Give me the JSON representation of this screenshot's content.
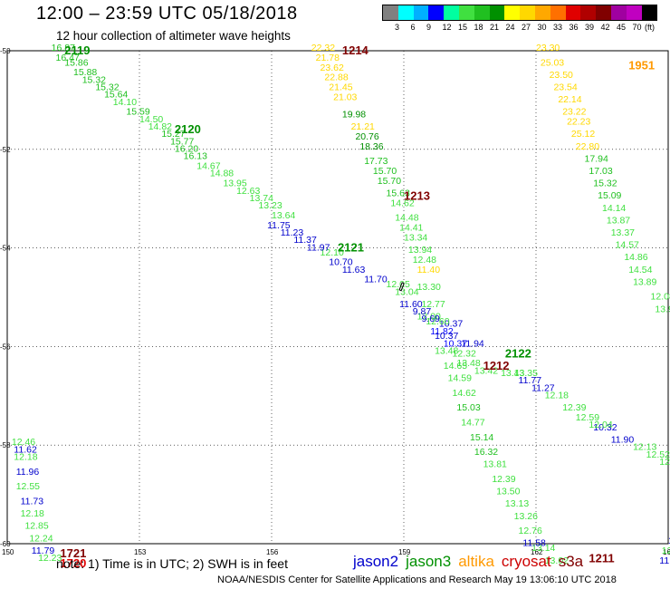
{
  "header": {
    "title": "12:00 – 23:59 UTC 05/18/2018",
    "subtitle": "12 hour collection of altimeter wave heights"
  },
  "legend": {
    "colors": [
      "#808080",
      "#00ffff",
      "#00b0ff",
      "#0000ff",
      "#00ffa0",
      "#40e040",
      "#20c020",
      "#009000",
      "#ffff00",
      "#ffd800",
      "#ffa800",
      "#ff7000",
      "#e00000",
      "#b00000",
      "#800000",
      "#a000a0",
      "#c000c0",
      "#000000"
    ],
    "ticks": [
      "3",
      "6",
      "9",
      "12",
      "15",
      "18",
      "21",
      "24",
      "27",
      "30",
      "33",
      "36",
      "39",
      "42",
      "45",
      "70",
      "(ft)"
    ]
  },
  "axes": {
    "lon_ticks": [
      "150",
      "153",
      "156",
      "159",
      "162",
      "165"
    ],
    "lat_ticks": [
      "-50",
      "-52",
      "-54",
      "-56",
      "-58",
      "-60"
    ]
  },
  "tracks": [
    {
      "sat": "jason3",
      "label": "2119",
      "label_lat": -50.0,
      "label_lon": 151.3,
      "points": [
        [
          151.0,
          -50.0,
          "16.87"
        ],
        [
          151.1,
          -50.2,
          "16.47"
        ],
        [
          151.3,
          -50.3,
          "15.86"
        ],
        [
          151.5,
          -50.5,
          "15.88"
        ],
        [
          151.7,
          -50.65,
          "15.32"
        ],
        [
          152.0,
          -50.8,
          "15.32"
        ],
        [
          152.2,
          -50.95,
          "15.64"
        ],
        [
          152.4,
          -51.1,
          "14.10"
        ],
        [
          152.7,
          -51.3,
          "15.59"
        ],
        [
          153.0,
          -51.45,
          "14.50"
        ],
        [
          153.2,
          -51.6,
          "14.82"
        ],
        [
          153.5,
          -51.75,
          "15.27"
        ],
        [
          153.7,
          -51.9,
          "15.77"
        ],
        [
          153.8,
          -52.05,
          "16.20"
        ],
        [
          154.0,
          -52.2,
          "16.13"
        ],
        [
          154.3,
          -52.4,
          "14.67"
        ],
        [
          154.6,
          -52.55,
          "14.88"
        ],
        [
          154.9,
          -52.75,
          "13.95"
        ],
        [
          155.2,
          -52.9,
          "12.63"
        ],
        [
          155.5,
          -53.05,
          "13.74"
        ],
        [
          155.7,
          -53.2,
          "13.23"
        ],
        [
          156.0,
          -53.4,
          "13.64"
        ]
      ]
    },
    {
      "sat": "jason3",
      "label": "2120",
      "label_lat": -51.6,
      "label_lon": 153.8,
      "points": []
    },
    {
      "sat": "jason3",
      "label": "2121",
      "label_lat": -54.0,
      "label_lon": 157.5,
      "points": [
        [
          157.1,
          -54.15,
          "12.10"
        ],
        [
          158.6,
          -54.8,
          "12.05"
        ],
        [
          158.8,
          -54.95,
          "13.04"
        ],
        [
          159.3,
          -55.45,
          "12.00"
        ],
        [
          159.6,
          -55.75,
          "11.82"
        ],
        [
          159.9,
          -56.0,
          "10.37"
        ],
        [
          160.1,
          -56.2,
          "12.32"
        ]
      ]
    },
    {
      "sat": "jason2",
      "label": "",
      "label_lat": 0,
      "label_lon": 0,
      "points": [
        [
          155.9,
          -53.6,
          "11.75"
        ],
        [
          156.2,
          -53.75,
          "11.23"
        ],
        [
          156.5,
          -53.9,
          "11.37"
        ],
        [
          156.8,
          -54.05,
          "11.97"
        ],
        [
          157.3,
          -54.35,
          "10.70"
        ],
        [
          157.6,
          -54.5,
          "11.63"
        ],
        [
          158.1,
          -54.7,
          "11.70"
        ],
        [
          158.9,
          -55.2,
          "11.60"
        ],
        [
          159.2,
          -55.35,
          "9.87"
        ],
        [
          159.4,
          -55.5,
          "9.69"
        ],
        [
          159.8,
          -55.6,
          "10.37"
        ],
        [
          159.7,
          -55.85,
          "10.37"
        ],
        [
          160.3,
          -56.0,
          "11.94"
        ],
        [
          161.6,
          -56.75,
          "11.77"
        ],
        [
          161.9,
          -56.9,
          "11.27"
        ],
        [
          163.3,
          -57.7,
          "10.32"
        ],
        [
          163.7,
          -57.95,
          "11.90"
        ]
      ]
    },
    {
      "sat": "jason3",
      "label": "2122",
      "label_lat": -56.15,
      "label_lon": 161.3,
      "points": [
        [
          160.2,
          -56.4,
          "13.48"
        ],
        [
          160.6,
          -56.55,
          "13.42"
        ],
        [
          161.2,
          -56.6,
          "13.43"
        ],
        [
          161.5,
          -56.6,
          "13.35"
        ],
        [
          162.2,
          -57.05,
          "12.18"
        ],
        [
          162.6,
          -57.3,
          "12.39"
        ],
        [
          162.9,
          -57.5,
          "12.59"
        ],
        [
          163.2,
          -57.65,
          "12.04"
        ],
        [
          164.2,
          -58.1,
          "12.13"
        ],
        [
          164.5,
          -58.25,
          "12.52"
        ],
        [
          164.8,
          -58.4,
          "12.08"
        ],
        [
          165.1,
          -58.6,
          "12.01"
        ]
      ]
    },
    {
      "sat": "jason3",
      "label": "",
      "label_lat": 0,
      "label_lon": 0,
      "points": [
        [
          157.9,
          -51.8,
          "20.76"
        ],
        [
          158.0,
          -52.0,
          "18.36"
        ],
        [
          158.1,
          -52.3,
          "17.73"
        ],
        [
          158.3,
          -52.5,
          "15.70"
        ],
        [
          158.4,
          -52.7,
          "15.70"
        ],
        [
          158.6,
          -52.95,
          "15.63"
        ],
        [
          158.7,
          -53.15,
          "14.62"
        ],
        [
          158.8,
          -53.45,
          "14.48"
        ],
        [
          158.9,
          -53.65,
          "14.41"
        ],
        [
          159.0,
          -53.85,
          "13.34"
        ],
        [
          159.1,
          -54.1,
          "13.94"
        ],
        [
          159.2,
          -54.3,
          "12.48"
        ],
        [
          159.3,
          -54.85,
          "13.30"
        ],
        [
          159.4,
          -55.2,
          "12.77"
        ],
        [
          159.5,
          -55.55,
          "12.60"
        ],
        [
          159.7,
          -56.15,
          "13.48"
        ],
        [
          159.9,
          -56.45,
          "14.65"
        ],
        [
          160.0,
          -56.7,
          "14.59"
        ],
        [
          160.1,
          -57.0,
          "14.62"
        ],
        [
          160.2,
          -57.3,
          "15.03"
        ],
        [
          160.3,
          -57.6,
          "14.77"
        ],
        [
          160.5,
          -57.9,
          "15.14"
        ],
        [
          160.6,
          -58.2,
          "16.32"
        ],
        [
          160.8,
          -58.45,
          "13.81"
        ],
        [
          161.0,
          -58.75,
          "12.39"
        ],
        [
          161.1,
          -59.0,
          "13.50"
        ],
        [
          161.3,
          -59.25,
          "13.13"
        ],
        [
          161.5,
          -59.5,
          "13.26"
        ],
        [
          161.6,
          -59.8,
          "12.76"
        ],
        [
          161.9,
          -60.15,
          "13.14"
        ],
        [
          162.2,
          -60.4,
          "13.02"
        ]
      ]
    },
    {
      "sat": "jason2",
      "label": "",
      "label_lat": 0,
      "label_lon": 0,
      "points": [
        [
          161.7,
          -60.05,
          "11.58"
        ]
      ]
    },
    {
      "sat": "altika",
      "label": "",
      "label_lat": 0,
      "label_lon": 0,
      "points": [
        [
          156.9,
          -50.0,
          "22.32"
        ],
        [
          157.0,
          -50.2,
          "21.78"
        ],
        [
          157.1,
          -50.4,
          "23.62"
        ],
        [
          157.2,
          -50.6,
          "22.88"
        ],
        [
          157.3,
          -50.8,
          "21.45"
        ],
        [
          157.4,
          -51.0,
          "21.03"
        ],
        [
          157.8,
          -51.6,
          "21.21"
        ],
        [
          159.3,
          -54.5,
          "11.40"
        ]
      ]
    },
    {
      "sat": "jason3",
      "label": "",
      "label_lat": 0,
      "label_lon": 0,
      "points": [
        [
          157.6,
          -51.35,
          "19.98"
        ]
      ]
    },
    {
      "sat": "cryosat",
      "label": "1214",
      "label_lat": -50.0,
      "label_lon": 157.6,
      "points": []
    },
    {
      "sat": "cryosat",
      "label": "1213",
      "label_lat": -52.95,
      "label_lon": 159.0,
      "points": []
    },
    {
      "sat": "cryosat",
      "label": "1212",
      "label_lat": -56.4,
      "label_lon": 160.8,
      "points": []
    },
    {
      "sat": "cryosat",
      "label": "1211",
      "label_lat": -60.3,
      "label_lon": 163.2,
      "points": []
    },
    {
      "sat": "altika",
      "label": "1951",
      "label_lat": -50.3,
      "label_lon": 164.1,
      "points": [
        [
          162.0,
          -50.0,
          "23.30"
        ],
        [
          162.1,
          -50.3,
          "25.03"
        ],
        [
          162.3,
          -50.55,
          "23.50"
        ],
        [
          162.4,
          -50.8,
          "23.54"
        ],
        [
          162.5,
          -51.05,
          "22.14"
        ],
        [
          162.6,
          -51.3,
          "23.22"
        ],
        [
          162.7,
          -51.5,
          "22.23"
        ],
        [
          162.8,
          -51.75,
          "25.12"
        ],
        [
          162.9,
          -52.0,
          "22.80"
        ]
      ]
    },
    {
      "sat": "jason3",
      "label": "",
      "label_lat": 0,
      "label_lon": 0,
      "points": [
        [
          163.1,
          -52.25,
          "17.94"
        ],
        [
          163.2,
          -52.5,
          "17.03"
        ],
        [
          163.3,
          -52.75,
          "15.32"
        ],
        [
          163.4,
          -53.0,
          "15.09"
        ],
        [
          163.5,
          -53.25,
          "14.14"
        ],
        [
          163.6,
          -53.5,
          "13.87"
        ],
        [
          163.7,
          -53.75,
          "13.37"
        ],
        [
          163.8,
          -54.0,
          "14.57"
        ],
        [
          164.0,
          -54.25,
          "14.86"
        ],
        [
          164.1,
          -54.5,
          "14.54"
        ],
        [
          164.2,
          -54.75,
          "13.89"
        ],
        [
          164.6,
          -55.05,
          "12.08"
        ],
        [
          164.7,
          -55.3,
          "13.9"
        ]
      ]
    },
    {
      "sat": "jason3",
      "label": "",
      "label_lat": 0,
      "label_lon": 0,
      "points": [
        [
          150.1,
          -58.0,
          "12.46"
        ],
        [
          150.15,
          -58.3,
          "12.18"
        ],
        [
          150.2,
          -58.9,
          "12.55"
        ],
        [
          150.3,
          -59.45,
          "12.18"
        ],
        [
          150.4,
          -59.7,
          "12.85"
        ],
        [
          150.5,
          -59.95,
          "12.24"
        ],
        [
          150.7,
          -60.35,
          "12.23"
        ]
      ]
    },
    {
      "sat": "jason2",
      "label": "",
      "label_lat": 0,
      "label_lon": 0,
      "points": [
        [
          150.15,
          -58.15,
          "11.62"
        ],
        [
          150.2,
          -58.6,
          "11.96"
        ],
        [
          150.3,
          -59.2,
          "11.73"
        ],
        [
          150.55,
          -60.2,
          "11.79"
        ]
      ]
    },
    {
      "sat": "cryosat",
      "label": "1721",
      "label_lat": -60.2,
      "label_lon": 151.2,
      "points": []
    },
    {
      "sat": "cryosat-red",
      "label": "1720",
      "label_lat": -60.4,
      "label_lon": 151.2,
      "points": []
    },
    {
      "sat": "jason2",
      "label": "",
      "label_lat": 0,
      "label_lon": 0,
      "points": [
        [
          164.8,
          -60.4,
          "11.65"
        ],
        [
          165.0,
          -60.0,
          "10."
        ]
      ]
    },
    {
      "sat": "jason3",
      "label": "",
      "label_lat": 0,
      "label_lon": 0,
      "points": [
        [
          164.85,
          -60.2,
          "12.0"
        ]
      ]
    }
  ],
  "note": {
    "text": "note:  1) Time is in UTC;  2) SWH is in feet",
    "sats": [
      {
        "name": "jason2",
        "color": "#0000cc"
      },
      {
        "name": "jason3",
        "color": "#009000"
      },
      {
        "name": "altika",
        "color": "#ff9900"
      },
      {
        "name": "cryosat",
        "color": "#cc0000"
      },
      {
        "name": "s3a",
        "color": "#800000"
      }
    ]
  },
  "credit": "NOAA/NESDIS Center for Satellite Applications and Research     May 19 13:06:10 UTC 2018",
  "colors": {
    "jason2": "#0000cc",
    "jason3": "#009000",
    "jason3_light": "#40e040",
    "altika": "#ffd800",
    "cryosat": "#800000",
    "cryosat-red": "#e00000"
  }
}
